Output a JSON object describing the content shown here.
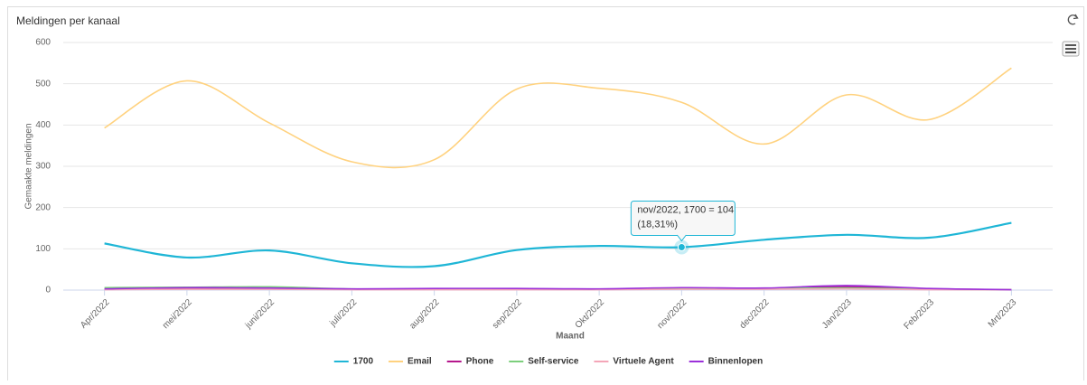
{
  "chart_data": {
    "type": "line",
    "title": "Meldingen per kanaal",
    "x_label": "Maand",
    "y_label": "Gemaakte meldingen",
    "categories": [
      "Apr/2022",
      "mei/2022",
      "juni/2022",
      "juli/2022",
      "aug/2022",
      "sep/2022",
      "Okt/2022",
      "nov/2022",
      "dec/2022",
      "Jan/2023",
      "Feb/2023",
      "Mrt/2023"
    ],
    "series": [
      {
        "name": "1700",
        "color": "#1fb6d6",
        "values": [
          113,
          79,
          96,
          65,
          58,
          97,
          107,
          104,
          122,
          134,
          127,
          163
        ]
      },
      {
        "name": "Email",
        "color": "#ffd27f",
        "values": [
          393,
          507,
          405,
          311,
          316,
          487,
          489,
          455,
          354,
          473,
          413,
          538
        ]
      },
      {
        "name": "Phone",
        "color": "#b5178c",
        "values": [
          2,
          4,
          5,
          2,
          3,
          3,
          2,
          5,
          4,
          8,
          3,
          1
        ]
      },
      {
        "name": "Self-service",
        "color": "#7ccf7c",
        "values": [
          6,
          7,
          8,
          3,
          3,
          3,
          2,
          3,
          4,
          5,
          2,
          1
        ]
      },
      {
        "name": "Virtuele Agent",
        "color": "#f4a6b8",
        "values": [
          1,
          2,
          2,
          1,
          1,
          1,
          1,
          2,
          2,
          3,
          1,
          1
        ]
      },
      {
        "name": "Binnenlopen",
        "color": "#9b30d9",
        "values": [
          3,
          6,
          5,
          3,
          4,
          4,
          3,
          6,
          5,
          11,
          4,
          1
        ]
      }
    ],
    "ylim": [
      0,
      600
    ],
    "yticks": [
      0,
      100,
      200,
      300,
      400,
      500,
      600
    ],
    "grid": true,
    "legend": "bottom",
    "tooltip": {
      "series": 0,
      "index": 7,
      "lines": [
        "nov/2022, 1700 = 104",
        "(18,31%)"
      ]
    }
  }
}
